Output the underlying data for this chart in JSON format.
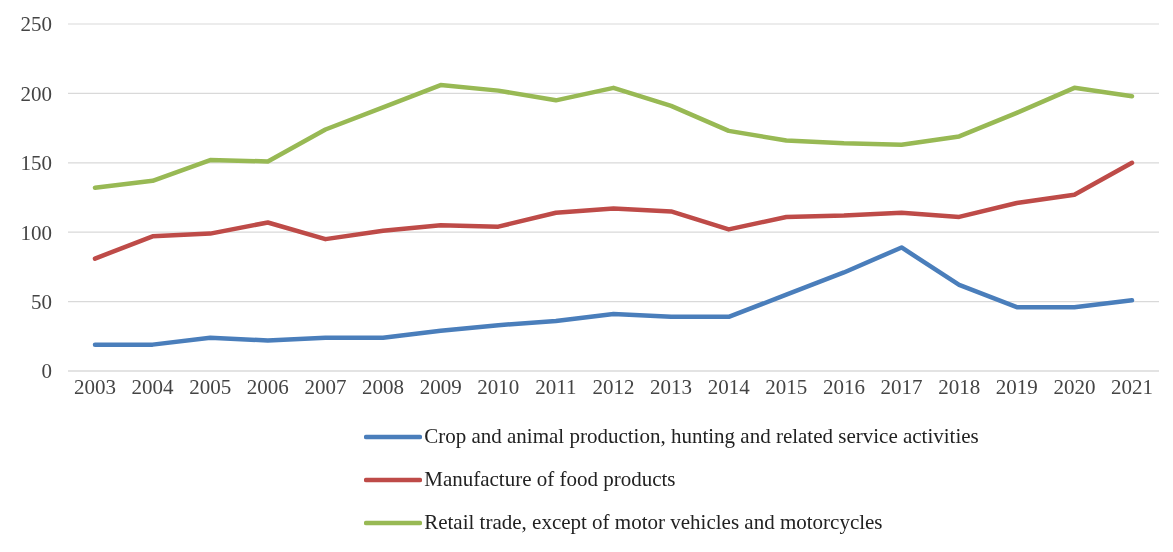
{
  "chart_data": {
    "type": "line",
    "categories": [
      "2003",
      "2004",
      "2005",
      "2006",
      "2007",
      "2008",
      "2009",
      "2010",
      "2011",
      "2012",
      "2013",
      "2014",
      "2015",
      "2016",
      "2017",
      "2018",
      "2019",
      "2020",
      "2021"
    ],
    "series": [
      {
        "name": "Crop and animal production, hunting and related service activities",
        "color": "#4a7ebb",
        "values": [
          19,
          19,
          24,
          22,
          24,
          24,
          29,
          33,
          36,
          41,
          39,
          39,
          55,
          71,
          89,
          62,
          46,
          46,
          51
        ]
      },
      {
        "name": "Manufacture of food products",
        "color": "#be4b48",
        "values": [
          81,
          97,
          99,
          107,
          95,
          101,
          105,
          104,
          114,
          117,
          115,
          102,
          111,
          112,
          114,
          111,
          121,
          127,
          150
        ]
      },
      {
        "name": "Retail trade, except of motor vehicles and motorcycles",
        "color": "#98b954",
        "values": [
          132,
          137,
          152,
          151,
          174,
          190,
          206,
          202,
          195,
          204,
          191,
          173,
          166,
          164,
          163,
          169,
          186,
          204,
          198
        ]
      }
    ],
    "ylim": [
      0,
      250
    ],
    "yticks": [
      0,
      50,
      100,
      150,
      200,
      250
    ],
    "grid": "y",
    "legend": "bottom",
    "marker": "none",
    "line_style": "solid"
  }
}
